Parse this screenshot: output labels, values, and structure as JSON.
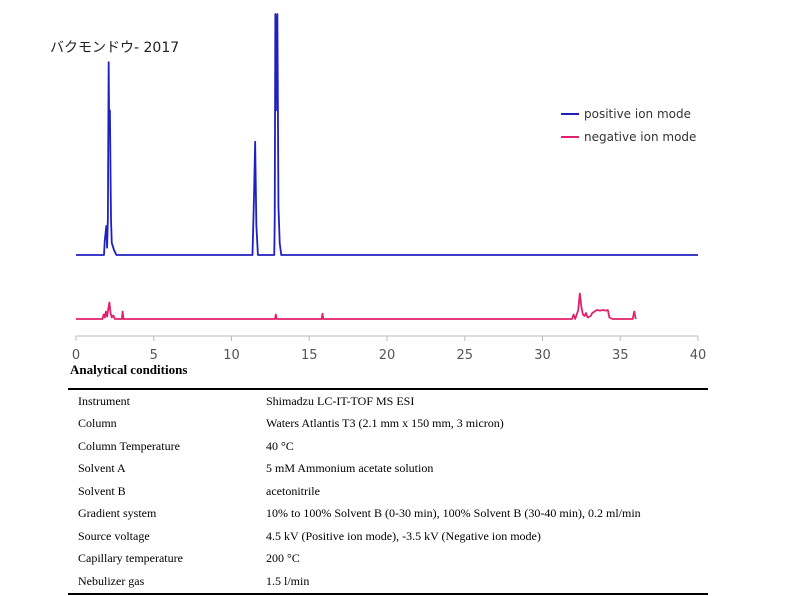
{
  "compound_title": "バクモンドウ- 2017",
  "chart_data": {
    "type": "line",
    "xlim": [
      0,
      40
    ],
    "x_ticks": [
      0,
      5,
      10,
      15,
      20,
      25,
      30,
      35,
      40
    ],
    "legend_position": "top-right",
    "series": [
      {
        "name": "positive ion mode",
        "color": "#2020c0",
        "points": [
          [
            0,
            0
          ],
          [
            1.8,
            0
          ],
          [
            1.85,
            0.06
          ],
          [
            1.95,
            0.12
          ],
          [
            2.0,
            0.03
          ],
          [
            2.05,
            0.15
          ],
          [
            2.1,
            0.8
          ],
          [
            2.13,
            0.55
          ],
          [
            2.18,
            0.6
          ],
          [
            2.25,
            0.15
          ],
          [
            2.3,
            0.05
          ],
          [
            2.45,
            0.02
          ],
          [
            2.6,
            0
          ],
          [
            11.35,
            0
          ],
          [
            11.45,
            0.25
          ],
          [
            11.52,
            0.47
          ],
          [
            11.6,
            0.12
          ],
          [
            11.7,
            0
          ],
          [
            12.75,
            0
          ],
          [
            12.78,
            0.15
          ],
          [
            12.82,
            1.0
          ],
          [
            12.86,
            0.6
          ],
          [
            12.9,
            0.95
          ],
          [
            12.95,
            1.0
          ],
          [
            13.02,
            0.2
          ],
          [
            13.1,
            0.05
          ],
          [
            13.2,
            0
          ],
          [
            40,
            0
          ]
        ]
      },
      {
        "name": "negative ion mode",
        "color": "#e0206a",
        "points": [
          [
            0,
            0
          ],
          [
            1.7,
            0
          ],
          [
            1.78,
            0.15
          ],
          [
            1.85,
            0.05
          ],
          [
            1.92,
            0.25
          ],
          [
            2.0,
            0.08
          ],
          [
            2.08,
            0.35
          ],
          [
            2.15,
            0.55
          ],
          [
            2.22,
            0.2
          ],
          [
            2.3,
            0.05
          ],
          [
            2.4,
            0.12
          ],
          [
            2.5,
            0
          ],
          [
            2.95,
            0
          ],
          [
            3.0,
            0.25
          ],
          [
            3.05,
            0
          ],
          [
            12.8,
            0
          ],
          [
            12.85,
            0.15
          ],
          [
            12.9,
            0
          ],
          [
            15.8,
            0
          ],
          [
            15.85,
            0.18
          ],
          [
            15.9,
            0
          ],
          [
            31.9,
            0
          ],
          [
            32.0,
            0.15
          ],
          [
            32.1,
            0
          ],
          [
            32.3,
            0.3
          ],
          [
            32.4,
            0.85
          ],
          [
            32.5,
            0.4
          ],
          [
            32.6,
            0.15
          ],
          [
            32.7,
            0.1
          ],
          [
            32.8,
            0.2
          ],
          [
            32.9,
            0.05
          ],
          [
            33.1,
            0.1
          ],
          [
            33.2,
            0.2
          ],
          [
            33.35,
            0.25
          ],
          [
            33.5,
            0.3
          ],
          [
            33.7,
            0.28
          ],
          [
            33.9,
            0.3
          ],
          [
            34.05,
            0.28
          ],
          [
            34.2,
            0.3
          ],
          [
            34.3,
            0.05
          ],
          [
            34.5,
            0
          ],
          [
            35.8,
            0
          ],
          [
            35.9,
            0.25
          ],
          [
            36.0,
            0
          ]
        ]
      }
    ]
  },
  "section_title": "Analytical conditions",
  "conditions": [
    {
      "label": "Instrument",
      "value": "Shimadzu LC-IT-TOF MS ESI"
    },
    {
      "label": "Column",
      "value": "Waters Atlantis T3 (2.1 mm x 150 mm, 3 micron)"
    },
    {
      "label": "Column Temperature",
      "value": "40 °C"
    },
    {
      "label": "Solvent A",
      "value": "5 mM Ammonium acetate solution"
    },
    {
      "label": "Solvent B",
      "value": "acetonitrile"
    },
    {
      "label": "Gradient system",
      "value": "10% to 100% Solvent B (0-30 min), 100% Solvent B (30-40 min), 0.2 ml/min"
    },
    {
      "label": "Source voltage",
      "value": "4.5 kV (Positive ion mode), -3.5 kV (Negative ion mode)"
    },
    {
      "label": "Capillary temperature",
      "value": "200 °C"
    },
    {
      "label": "Nebulizer gas",
      "value": "1.5 l/min"
    }
  ]
}
